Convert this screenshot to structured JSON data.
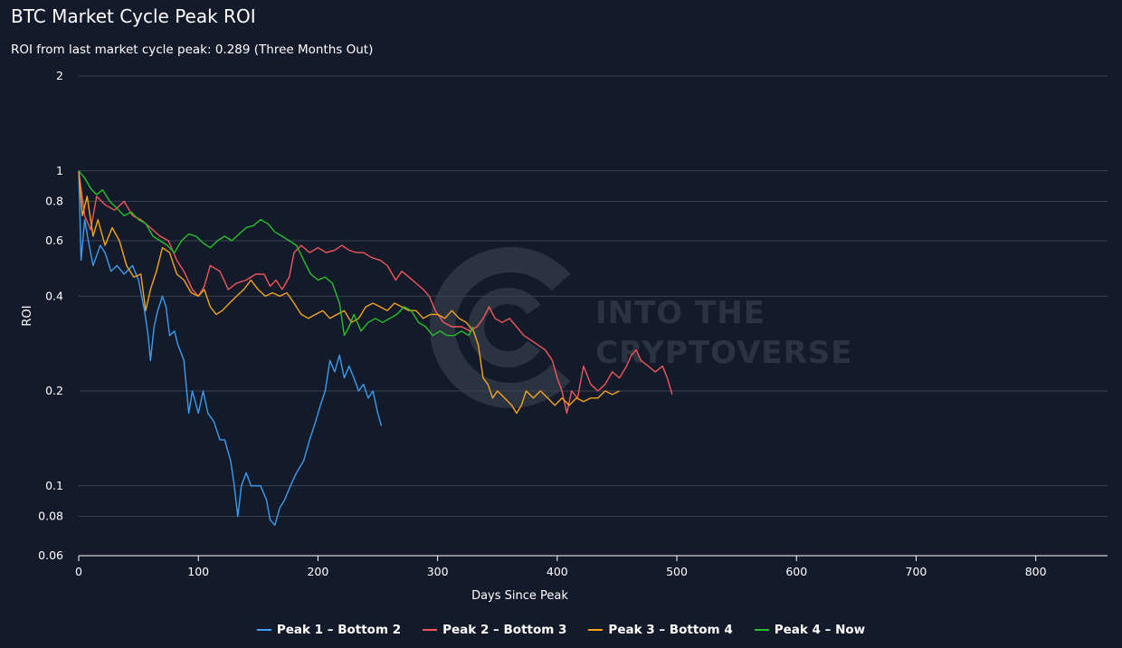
{
  "header": {
    "title": "BTC Market Cycle Peak ROI",
    "subtitle": "ROI from last market cycle peak: 0.289 (Three Months Out)"
  },
  "watermark": {
    "line1": "INTO THE",
    "line2": "CRYPTOVERSE"
  },
  "chart_data": {
    "type": "line",
    "title": "BTC Market Cycle Peak ROI",
    "xlabel": "Days Since Peak",
    "ylabel": "ROI",
    "y_scale": "log",
    "xlim": [
      0,
      860
    ],
    "ylim": [
      0.06,
      2
    ],
    "x_ticks": [
      0,
      100,
      200,
      300,
      400,
      500,
      600,
      700,
      800
    ],
    "y_ticks": [
      2,
      1,
      0.8,
      0.6,
      0.4,
      0.2,
      0.1,
      0.08,
      0.06
    ],
    "grid": true,
    "legend_position": "bottom",
    "series": [
      {
        "name": "Peak 1 – Bottom 2",
        "color": "#3b9cf0",
        "points": [
          [
            0,
            1
          ],
          [
            2,
            0.52
          ],
          [
            5,
            0.7
          ],
          [
            8,
            0.6
          ],
          [
            12,
            0.5
          ],
          [
            18,
            0.58
          ],
          [
            22,
            0.55
          ],
          [
            27,
            0.48
          ],
          [
            32,
            0.5
          ],
          [
            38,
            0.47
          ],
          [
            45,
            0.5
          ],
          [
            50,
            0.45
          ],
          [
            55,
            0.36
          ],
          [
            58,
            0.3
          ],
          [
            60,
            0.25
          ],
          [
            63,
            0.32
          ],
          [
            66,
            0.36
          ],
          [
            70,
            0.4
          ],
          [
            73,
            0.37
          ],
          [
            76,
            0.3
          ],
          [
            80,
            0.31
          ],
          [
            83,
            0.28
          ],
          [
            88,
            0.25
          ],
          [
            92,
            0.17
          ],
          [
            95,
            0.2
          ],
          [
            100,
            0.17
          ],
          [
            104,
            0.2
          ],
          [
            108,
            0.17
          ],
          [
            113,
            0.16
          ],
          [
            118,
            0.14
          ],
          [
            122,
            0.14
          ],
          [
            127,
            0.12
          ],
          [
            130,
            0.1
          ],
          [
            133,
            0.08
          ],
          [
            136,
            0.1
          ],
          [
            140,
            0.11
          ],
          [
            144,
            0.1
          ],
          [
            148,
            0.1
          ],
          [
            152,
            0.1
          ],
          [
            157,
            0.09
          ],
          [
            160,
            0.078
          ],
          [
            164,
            0.075
          ],
          [
            168,
            0.085
          ],
          [
            172,
            0.09
          ],
          [
            177,
            0.1
          ],
          [
            182,
            0.11
          ],
          [
            188,
            0.12
          ],
          [
            193,
            0.14
          ],
          [
            198,
            0.16
          ],
          [
            202,
            0.18
          ],
          [
            206,
            0.2
          ],
          [
            210,
            0.25
          ],
          [
            214,
            0.23
          ],
          [
            218,
            0.26
          ],
          [
            222,
            0.22
          ],
          [
            226,
            0.24
          ],
          [
            230,
            0.22
          ],
          [
            234,
            0.2
          ],
          [
            238,
            0.21
          ],
          [
            242,
            0.19
          ],
          [
            246,
            0.2
          ],
          [
            250,
            0.17
          ],
          [
            253,
            0.155
          ]
        ]
      },
      {
        "name": "Peak 2 – Bottom 3",
        "color": "#f0565c",
        "points": [
          [
            0,
            1
          ],
          [
            5,
            0.72
          ],
          [
            10,
            0.65
          ],
          [
            15,
            0.83
          ],
          [
            22,
            0.78
          ],
          [
            30,
            0.75
          ],
          [
            38,
            0.8
          ],
          [
            45,
            0.72
          ],
          [
            52,
            0.7
          ],
          [
            60,
            0.66
          ],
          [
            68,
            0.62
          ],
          [
            75,
            0.6
          ],
          [
            82,
            0.52
          ],
          [
            88,
            0.48
          ],
          [
            95,
            0.42
          ],
          [
            100,
            0.4
          ],
          [
            105,
            0.43
          ],
          [
            110,
            0.5
          ],
          [
            118,
            0.48
          ],
          [
            125,
            0.42
          ],
          [
            132,
            0.44
          ],
          [
            140,
            0.45
          ],
          [
            148,
            0.47
          ],
          [
            155,
            0.47
          ],
          [
            160,
            0.43
          ],
          [
            165,
            0.45
          ],
          [
            170,
            0.42
          ],
          [
            176,
            0.46
          ],
          [
            180,
            0.55
          ],
          [
            186,
            0.58
          ],
          [
            193,
            0.55
          ],
          [
            200,
            0.57
          ],
          [
            207,
            0.55
          ],
          [
            214,
            0.56
          ],
          [
            220,
            0.58
          ],
          [
            226,
            0.56
          ],
          [
            232,
            0.55
          ],
          [
            238,
            0.55
          ],
          [
            245,
            0.53
          ],
          [
            252,
            0.52
          ],
          [
            258,
            0.5
          ],
          [
            265,
            0.45
          ],
          [
            270,
            0.48
          ],
          [
            276,
            0.46
          ],
          [
            282,
            0.44
          ],
          [
            288,
            0.42
          ],
          [
            293,
            0.4
          ],
          [
            298,
            0.36
          ],
          [
            305,
            0.33
          ],
          [
            312,
            0.32
          ],
          [
            320,
            0.32
          ],
          [
            327,
            0.31
          ],
          [
            333,
            0.32
          ],
          [
            338,
            0.34
          ],
          [
            343,
            0.37
          ],
          [
            348,
            0.34
          ],
          [
            354,
            0.33
          ],
          [
            360,
            0.34
          ],
          [
            366,
            0.32
          ],
          [
            372,
            0.3
          ],
          [
            378,
            0.29
          ],
          [
            384,
            0.28
          ],
          [
            390,
            0.27
          ],
          [
            396,
            0.25
          ],
          [
            400,
            0.22
          ],
          [
            404,
            0.2
          ],
          [
            408,
            0.17
          ],
          [
            412,
            0.2
          ],
          [
            417,
            0.19
          ],
          [
            422,
            0.24
          ],
          [
            428,
            0.21
          ],
          [
            434,
            0.2
          ],
          [
            440,
            0.21
          ],
          [
            446,
            0.23
          ],
          [
            452,
            0.22
          ],
          [
            458,
            0.24
          ],
          [
            462,
            0.26
          ],
          [
            466,
            0.27
          ],
          [
            470,
            0.25
          ],
          [
            476,
            0.24
          ],
          [
            482,
            0.23
          ],
          [
            488,
            0.24
          ],
          [
            492,
            0.22
          ],
          [
            496,
            0.195
          ]
        ]
      },
      {
        "name": "Peak 3 – Bottom 4",
        "color": "#f5a31f",
        "points": [
          [
            0,
            1
          ],
          [
            3,
            0.72
          ],
          [
            7,
            0.83
          ],
          [
            12,
            0.62
          ],
          [
            16,
            0.7
          ],
          [
            22,
            0.58
          ],
          [
            28,
            0.66
          ],
          [
            34,
            0.6
          ],
          [
            40,
            0.5
          ],
          [
            46,
            0.46
          ],
          [
            52,
            0.47
          ],
          [
            56,
            0.36
          ],
          [
            60,
            0.42
          ],
          [
            65,
            0.48
          ],
          [
            70,
            0.57
          ],
          [
            76,
            0.55
          ],
          [
            82,
            0.47
          ],
          [
            88,
            0.45
          ],
          [
            94,
            0.41
          ],
          [
            100,
            0.4
          ],
          [
            105,
            0.42
          ],
          [
            110,
            0.37
          ],
          [
            115,
            0.35
          ],
          [
            120,
            0.36
          ],
          [
            126,
            0.38
          ],
          [
            132,
            0.4
          ],
          [
            138,
            0.42
          ],
          [
            144,
            0.45
          ],
          [
            150,
            0.42
          ],
          [
            156,
            0.4
          ],
          [
            162,
            0.41
          ],
          [
            168,
            0.4
          ],
          [
            174,
            0.41
          ],
          [
            180,
            0.38
          ],
          [
            186,
            0.35
          ],
          [
            192,
            0.34
          ],
          [
            198,
            0.35
          ],
          [
            204,
            0.36
          ],
          [
            210,
            0.34
          ],
          [
            216,
            0.35
          ],
          [
            222,
            0.36
          ],
          [
            228,
            0.33
          ],
          [
            234,
            0.34
          ],
          [
            240,
            0.37
          ],
          [
            246,
            0.38
          ],
          [
            252,
            0.37
          ],
          [
            258,
            0.36
          ],
          [
            264,
            0.38
          ],
          [
            270,
            0.37
          ],
          [
            276,
            0.36
          ],
          [
            282,
            0.36
          ],
          [
            288,
            0.34
          ],
          [
            294,
            0.35
          ],
          [
            300,
            0.35
          ],
          [
            306,
            0.34
          ],
          [
            312,
            0.36
          ],
          [
            318,
            0.34
          ],
          [
            324,
            0.33
          ],
          [
            330,
            0.31
          ],
          [
            334,
            0.28
          ],
          [
            338,
            0.22
          ],
          [
            342,
            0.21
          ],
          [
            346,
            0.19
          ],
          [
            350,
            0.2
          ],
          [
            356,
            0.19
          ],
          [
            362,
            0.18
          ],
          [
            366,
            0.17
          ],
          [
            370,
            0.18
          ],
          [
            374,
            0.2
          ],
          [
            380,
            0.19
          ],
          [
            386,
            0.2
          ],
          [
            392,
            0.19
          ],
          [
            398,
            0.18
          ],
          [
            404,
            0.19
          ],
          [
            410,
            0.18
          ],
          [
            416,
            0.19
          ],
          [
            422,
            0.185
          ],
          [
            428,
            0.19
          ],
          [
            434,
            0.19
          ],
          [
            440,
            0.2
          ],
          [
            446,
            0.195
          ],
          [
            452,
            0.2
          ]
        ]
      },
      {
        "name": "Peak 4 – Now",
        "color": "#27c02a",
        "points": [
          [
            0,
            1
          ],
          [
            5,
            0.95
          ],
          [
            10,
            0.88
          ],
          [
            15,
            0.84
          ],
          [
            20,
            0.87
          ],
          [
            26,
            0.8
          ],
          [
            32,
            0.76
          ],
          [
            38,
            0.72
          ],
          [
            44,
            0.74
          ],
          [
            50,
            0.7
          ],
          [
            56,
            0.68
          ],
          [
            62,
            0.62
          ],
          [
            68,
            0.6
          ],
          [
            74,
            0.58
          ],
          [
            80,
            0.55
          ],
          [
            86,
            0.6
          ],
          [
            92,
            0.63
          ],
          [
            98,
            0.62
          ],
          [
            104,
            0.59
          ],
          [
            110,
            0.57
          ],
          [
            116,
            0.6
          ],
          [
            122,
            0.62
          ],
          [
            128,
            0.6
          ],
          [
            134,
            0.63
          ],
          [
            140,
            0.66
          ],
          [
            146,
            0.67
          ],
          [
            152,
            0.7
          ],
          [
            158,
            0.68
          ],
          [
            164,
            0.64
          ],
          [
            170,
            0.62
          ],
          [
            176,
            0.6
          ],
          [
            182,
            0.58
          ],
          [
            188,
            0.52
          ],
          [
            194,
            0.47
          ],
          [
            200,
            0.45
          ],
          [
            206,
            0.46
          ],
          [
            212,
            0.44
          ],
          [
            218,
            0.38
          ],
          [
            222,
            0.3
          ],
          [
            226,
            0.32
          ],
          [
            230,
            0.35
          ],
          [
            236,
            0.31
          ],
          [
            242,
            0.33
          ],
          [
            248,
            0.34
          ],
          [
            254,
            0.33
          ],
          [
            260,
            0.34
          ],
          [
            266,
            0.35
          ],
          [
            272,
            0.37
          ],
          [
            278,
            0.36
          ],
          [
            284,
            0.33
          ],
          [
            290,
            0.32
          ],
          [
            296,
            0.3
          ],
          [
            302,
            0.31
          ],
          [
            308,
            0.3
          ],
          [
            314,
            0.3
          ],
          [
            320,
            0.31
          ],
          [
            326,
            0.3
          ],
          [
            330,
            0.32
          ]
        ]
      }
    ]
  }
}
